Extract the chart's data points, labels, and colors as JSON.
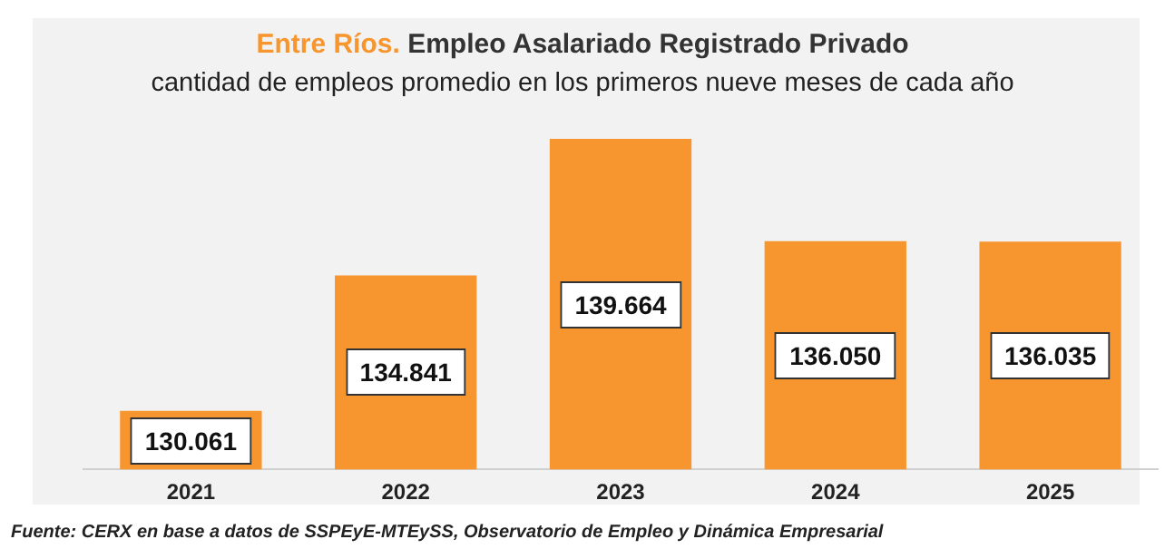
{
  "chart_data": {
    "type": "bar",
    "title": "Entre Ríos. Empleo Asalariado Registrado Privado",
    "subtitle": "cantidad de empleos promedio en los primeros nueve meses de cada año",
    "categories": [
      "2021",
      "2022",
      "2023",
      "2024",
      "2025"
    ],
    "values": [
      130061,
      134841,
      139664,
      136050,
      136035
    ],
    "value_labels": [
      "130.061",
      "134.841",
      "139.664",
      "136.050",
      "136.035"
    ],
    "color": "#f7962e",
    "tick_labels": "x",
    "annotations": [
      "Fuente: CERX en base a datos de SSPEyE-MTEySS, Observatorio de Empleo y Dinámica Empresarial"
    ]
  }
}
